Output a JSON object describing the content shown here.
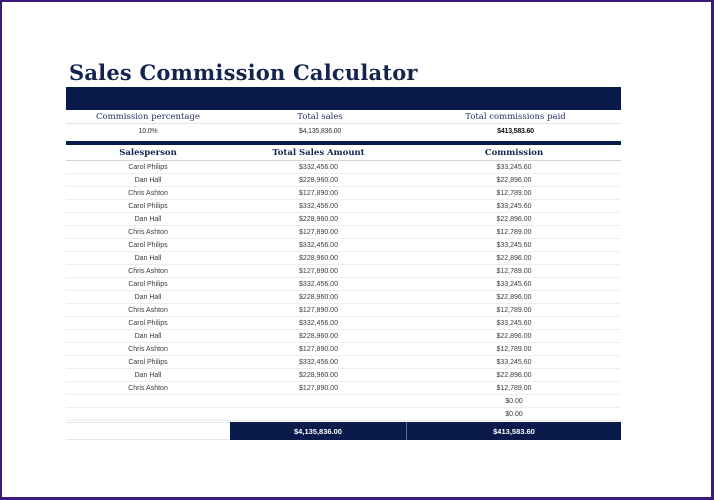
{
  "title": "Sales Commission Calculator",
  "summary": {
    "headers": [
      "Commission percentage",
      "Total sales",
      "Total commissions paid"
    ],
    "commission_percentage": "10.0%",
    "total_sales": "$4,135,836.00",
    "total_commissions_paid": "$413,583.60"
  },
  "table": {
    "columns": [
      "Salesperson",
      "Total Sales Amount",
      "Commission"
    ],
    "rows": [
      {
        "salesperson": "Carol Philips",
        "total_sales": "$332,456.00",
        "commission": "$33,245.60"
      },
      {
        "salesperson": "Dan Hall",
        "total_sales": "$228,960.00",
        "commission": "$22,896.00"
      },
      {
        "salesperson": "Chris Ashton",
        "total_sales": "$127,890.00",
        "commission": "$12,789.00"
      },
      {
        "salesperson": "Carol Philips",
        "total_sales": "$332,456.00",
        "commission": "$33,245.60"
      },
      {
        "salesperson": "Dan Hall",
        "total_sales": "$228,960.00",
        "commission": "$22,896.00"
      },
      {
        "salesperson": "Chris Ashton",
        "total_sales": "$127,890.00",
        "commission": "$12,789.00"
      },
      {
        "salesperson": "Carol Philips",
        "total_sales": "$332,456.00",
        "commission": "$33,245.60"
      },
      {
        "salesperson": "Dan Hall",
        "total_sales": "$228,960.00",
        "commission": "$22,896.00"
      },
      {
        "salesperson": "Chris Ashton",
        "total_sales": "$127,890.00",
        "commission": "$12,789.00"
      },
      {
        "salesperson": "Carol Philips",
        "total_sales": "$332,456.00",
        "commission": "$33,245.60"
      },
      {
        "salesperson": "Dan Hall",
        "total_sales": "$228,960.00",
        "commission": "$22,896.00"
      },
      {
        "salesperson": "Chris Ashton",
        "total_sales": "$127,890.00",
        "commission": "$12,789.00"
      },
      {
        "salesperson": "Carol Philips",
        "total_sales": "$332,456.00",
        "commission": "$33,245.60"
      },
      {
        "salesperson": "Dan Hall",
        "total_sales": "$228,960.00",
        "commission": "$22,896.00"
      },
      {
        "salesperson": "Chris Ashton",
        "total_sales": "$127,890.00",
        "commission": "$12,789.00"
      },
      {
        "salesperson": "Carol Philips",
        "total_sales": "$332,456.00",
        "commission": "$33,245.60"
      },
      {
        "salesperson": "Dan Hall",
        "total_sales": "$228,960.00",
        "commission": "$22,896.00"
      },
      {
        "salesperson": "Chris Ashton",
        "total_sales": "$127,890.00",
        "commission": "$12,789.00"
      },
      {
        "salesperson": "",
        "total_sales": "",
        "commission": "$0.00"
      },
      {
        "salesperson": "",
        "total_sales": "",
        "commission": "$0.00"
      }
    ],
    "totals": {
      "label": "",
      "total_sales": "$4,135,836.00",
      "commission": "$413,583.60"
    }
  },
  "colors": {
    "navy": "#0a1a4a",
    "title": "#13254f",
    "frame": "#3b1a7a"
  }
}
